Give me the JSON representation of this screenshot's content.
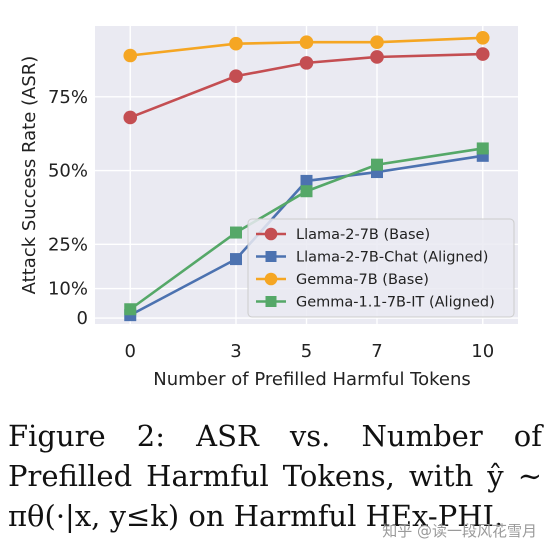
{
  "chart_data": {
    "type": "line",
    "xlabel": "Number of Prefilled Harmful Tokens",
    "ylabel": "Attack Success Rate (ASR)",
    "x": [
      0,
      3,
      5,
      7,
      10
    ],
    "x_ticks": [
      "0",
      "3",
      "5",
      "7",
      "10"
    ],
    "y_ticks": [
      {
        "value": 0,
        "label": "0"
      },
      {
        "value": 10,
        "label": "10%"
      },
      {
        "value": 25,
        "label": "25%"
      },
      {
        "value": 50,
        "label": "50%"
      },
      {
        "value": 75,
        "label": "75%"
      }
    ],
    "xlim": [
      -1,
      11
    ],
    "ylim": [
      -2,
      99
    ],
    "grid": true,
    "legend_position": "bottom-right",
    "series": [
      {
        "name": "Llama-2-7B (Base)",
        "color": "#c44e52",
        "marker": "circle",
        "values": [
          68,
          82,
          86.5,
          88.5,
          89.5
        ]
      },
      {
        "name": "Llama-2-7B-Chat (Aligned)",
        "color": "#4c72b0",
        "marker": "square",
        "values": [
          1,
          20,
          46.5,
          49.5,
          55
        ]
      },
      {
        "name": "Gemma-7B (Base)",
        "color": "#f5a623",
        "marker": "circle",
        "values": [
          89,
          93,
          93.5,
          93.5,
          95
        ]
      },
      {
        "name": "Gemma-1.1-7B-IT (Aligned)",
        "color": "#55a868",
        "marker": "square",
        "values": [
          3,
          29,
          43,
          52,
          57.5
        ]
      }
    ]
  },
  "caption": {
    "text": "Figure 2: ASR vs. Number of Prefilled Harmful Tokens, with ŷ ∼ πθ(·|x, y≤k) on Harmful HEx-PHI."
  },
  "watermark": "知乎 @读一段风花雪月"
}
